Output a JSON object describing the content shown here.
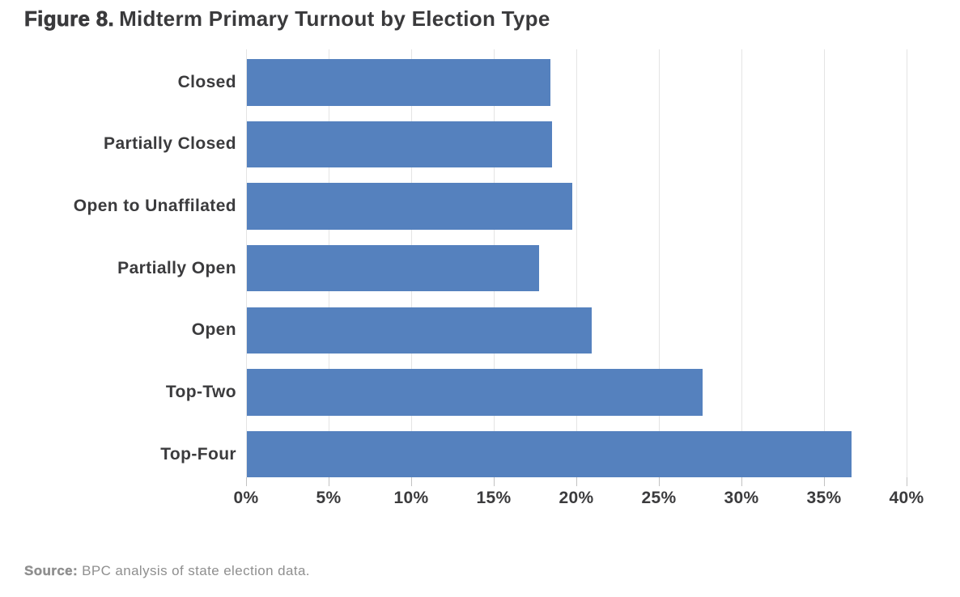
{
  "title": {
    "prefix": "Figure 8.",
    "text": "Midterm Primary Turnout by Election Type"
  },
  "source": {
    "prefix": "Source:",
    "text": "BPC analysis of state election data."
  },
  "chart_data": {
    "type": "bar",
    "orientation": "horizontal",
    "title": "Figure 8. Midterm Primary Turnout by Election Type",
    "categories": [
      "Closed",
      "Partially Closed",
      "Open to Unaffilated",
      "Partially Open",
      "Open",
      "Top-Two",
      "Top-Four"
    ],
    "values": [
      18.4,
      18.5,
      19.7,
      17.7,
      20.9,
      27.6,
      36.6
    ],
    "unit": "%",
    "xlabel": "",
    "ylabel": "",
    "xlim": [
      0,
      40
    ],
    "x_ticks": [
      0,
      5,
      10,
      15,
      20,
      25,
      30,
      35,
      40
    ],
    "x_tick_labels": [
      "0%",
      "5%",
      "10%",
      "15%",
      "20%",
      "25%",
      "30%",
      "35%",
      "40%"
    ],
    "grid": true,
    "legend": false,
    "bar_color": "#5581BE",
    "gridline_color": "#E4E4E4",
    "tick_color": "#C2C2C2",
    "text_color": "#3B3B3D",
    "source_color": "#8F8F8F"
  }
}
